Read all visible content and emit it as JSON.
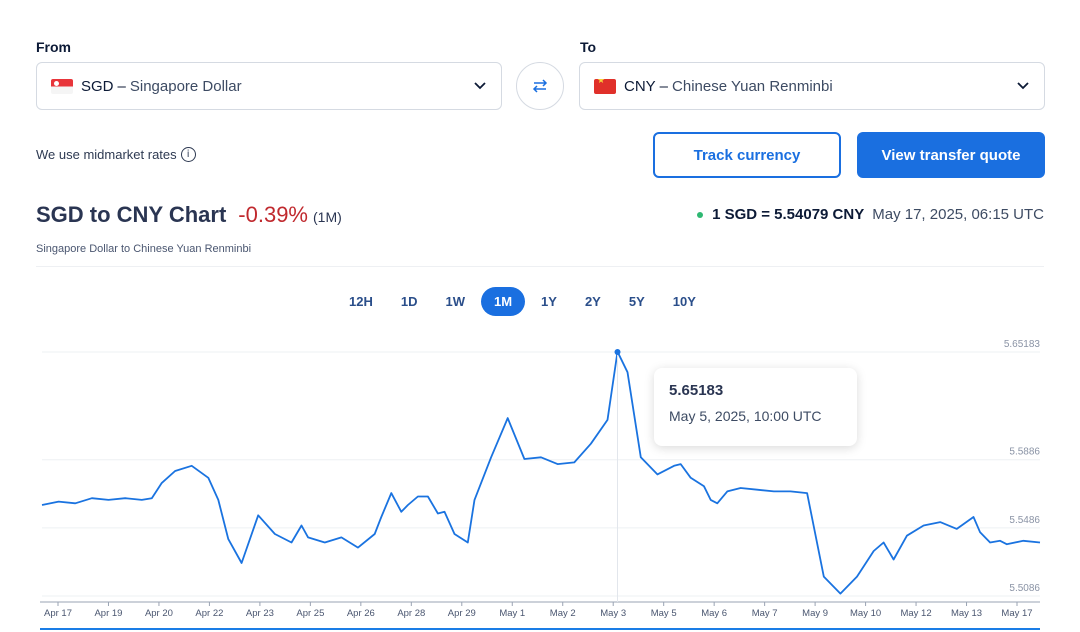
{
  "converter": {
    "from_label": "From",
    "to_label": "To",
    "from": {
      "code": "SGD",
      "separator": "–",
      "name": "Singapore Dollar",
      "flag": "sg-flag-icon"
    },
    "to": {
      "code": "CNY",
      "separator": "–",
      "name": "Chinese Yuan Renminbi",
      "flag": "cn-flag-icon"
    },
    "swap_icon": "swap-arrows-icon",
    "midmarket_note": "We use midmarket rates",
    "info_icon_glyph": "i"
  },
  "actions": {
    "track_label": "Track currency",
    "quote_label": "View transfer quote"
  },
  "chart_header": {
    "title": "SGD to CNY Chart",
    "change": "-0.39%",
    "period": "(1M)",
    "subtitle": "Singapore Dollar to Chinese Yuan Renminbi",
    "rate": "1 SGD = 5.54079 CNY",
    "rate_time": "May 17, 2025, 06:15 UTC"
  },
  "tabs": [
    "12H",
    "1D",
    "1W",
    "1M",
    "1Y",
    "2Y",
    "5Y",
    "10Y"
  ],
  "active_tab": "1M",
  "tooltip": {
    "value": "5.65183",
    "time": "May 5, 2025, 10:00 UTC"
  },
  "colors": {
    "accent": "#1a6fe0",
    "line": "#1a73e0",
    "negative": "#c0292e",
    "live_dot": "#2eb872"
  },
  "chart_data": {
    "type": "line",
    "title": "SGD to CNY Chart",
    "x_tick_labels": [
      "Apr 17",
      "Apr 19",
      "Apr 20",
      "Apr 22",
      "Apr 23",
      "Apr 25",
      "Apr 26",
      "Apr 28",
      "Apr 29",
      "May 1",
      "May 2",
      "May 3",
      "May 5",
      "May 6",
      "May 7",
      "May 9",
      "May 10",
      "May 12",
      "May 13",
      "May 17"
    ],
    "y_tick_labels": [
      "5.65183",
      "5.5886",
      "5.5486",
      "5.5086"
    ],
    "y_ticks": [
      5.65183,
      5.5886,
      5.5486,
      5.5086
    ],
    "ylim": [
      5.5086,
      5.65183
    ],
    "grid": true,
    "series": [
      {
        "x": [
          0,
          0.5,
          1,
          1.5,
          2,
          2.5,
          3,
          3.3,
          3.6,
          4,
          4.5,
          5,
          5.3,
          5.6,
          6,
          6.5,
          7,
          7.5,
          7.8,
          8,
          8.5,
          9,
          9.5,
          10,
          10.2,
          10.5,
          10.8,
          11,
          11.3,
          11.6,
          11.9,
          12.1,
          12.4,
          12.8,
          13,
          13.5,
          14,
          14.5,
          15,
          15.5,
          16,
          16.5,
          17,
          17.3,
          17.6,
          18,
          18.5,
          19,
          19.2,
          19.5,
          19.9,
          20.1,
          20.3,
          20.6,
          21,
          21.5,
          22,
          22.5,
          23,
          23.5,
          24,
          24.5,
          25,
          25.3,
          25.6,
          26,
          26.5,
          27,
          27.5,
          28,
          28.2,
          28.5,
          28.8,
          29,
          29.5,
          30
        ],
        "values": [
          5.562,
          5.564,
          5.563,
          5.566,
          5.565,
          5.566,
          5.565,
          5.566,
          5.575,
          5.582,
          5.585,
          5.578,
          5.565,
          5.542,
          5.528,
          5.556,
          5.545,
          5.54,
          5.55,
          5.543,
          5.54,
          5.543,
          5.537,
          5.545,
          5.555,
          5.569,
          5.558,
          5.562,
          5.567,
          5.567,
          5.557,
          5.558,
          5.545,
          5.54,
          5.565,
          5.59,
          5.613,
          5.589,
          5.59,
          5.586,
          5.587,
          5.598,
          5.612,
          5.652,
          5.64,
          5.59,
          5.58,
          5.585,
          5.586,
          5.578,
          5.573,
          5.565,
          5.563,
          5.57,
          5.572,
          5.571,
          5.57,
          5.57,
          5.569,
          5.52,
          5.51,
          5.52,
          5.535,
          5.54,
          5.53,
          5.544,
          5.55,
          5.552,
          5.548,
          5.555,
          5.546,
          5.54,
          5.541,
          5.539,
          5.541,
          5.54
        ]
      }
    ],
    "highlight": {
      "x": 17.3,
      "value": 5.65183
    }
  }
}
